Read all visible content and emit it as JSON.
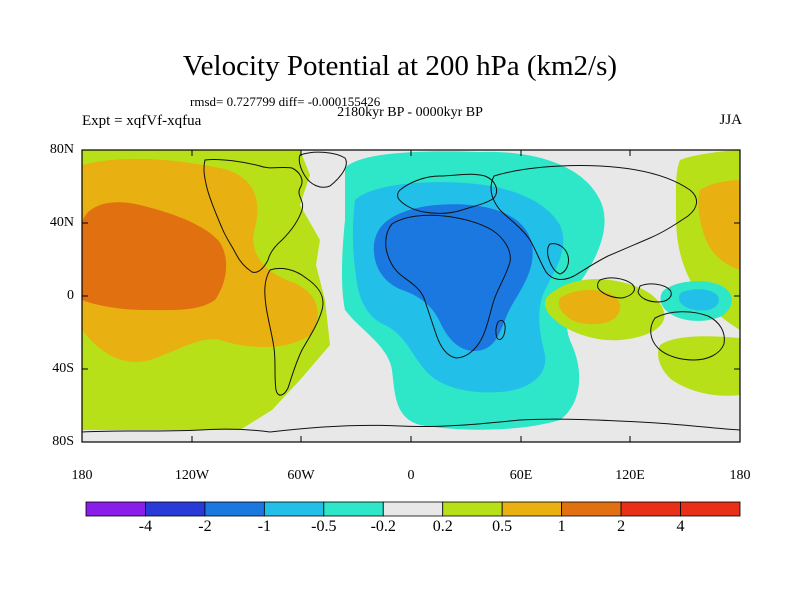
{
  "title": "Velocity Potential at 200 hPa (km2/s)",
  "stats_line": "rmsd= 0.727799 diff= -0.000155426",
  "period": "2180kyr BP - 0000kyr BP",
  "experiment": "Expt = xqfVf-xqfua",
  "season": "JJA",
  "lat_labels": [
    "80N",
    "40N",
    "0",
    "40S",
    "80S"
  ],
  "lon_labels": [
    "180",
    "120W",
    "60W",
    "0",
    "60E",
    "120E",
    "180"
  ],
  "colorbar": {
    "labels": [
      "-4",
      "-2",
      "-1",
      "-0.5",
      "-0.2",
      "0.2",
      "0.5",
      "1",
      "2",
      "4"
    ],
    "colors": [
      "#8a1ee8",
      "#2a3ad8",
      "#1a78e0",
      "#22c0e8",
      "#2ee6c8",
      "#e8e8e8",
      "#b8e018",
      "#e8b010",
      "#e07010",
      "#e83018"
    ]
  },
  "colors": {
    "ocean_neutral": "#e8e8e8",
    "positive_light": "#b8e018",
    "positive_mid": "#e8b010",
    "positive_high": "#e07010",
    "negative_light": "#2ee6c8",
    "negative_mid": "#22c0e8",
    "negative_strong": "#1a78e0"
  }
}
